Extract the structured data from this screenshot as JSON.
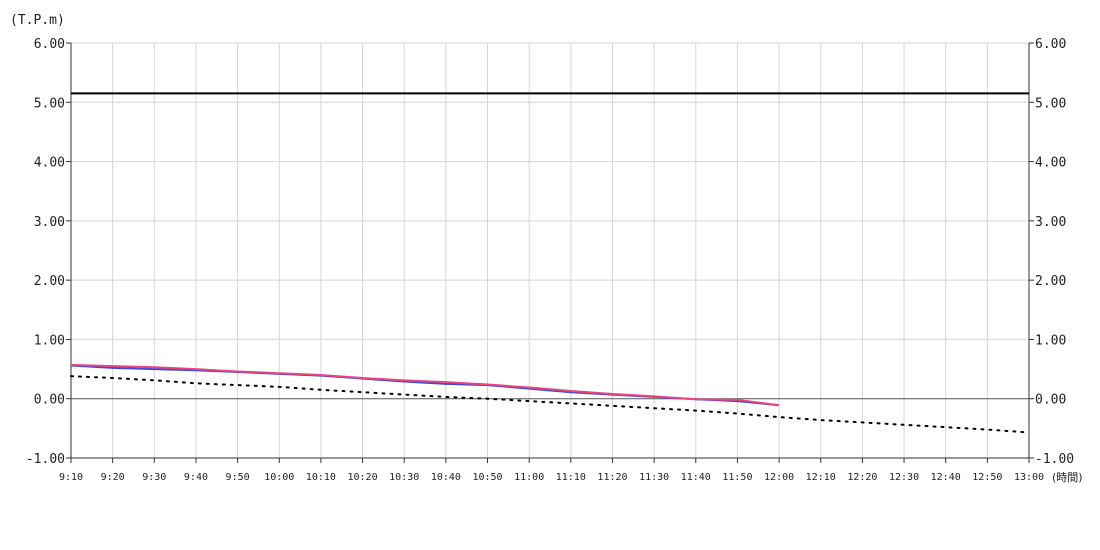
{
  "chart_data": {
    "type": "line",
    "y_unit_label": "(T.P.m)",
    "x_unit_label": "(時間)",
    "ylim": [
      -1.0,
      6.0
    ],
    "y_ticks": [
      "6.00",
      "5.00",
      "4.00",
      "3.00",
      "2.00",
      "1.00",
      "0.00",
      "-1.00"
    ],
    "y_tick_values": [
      6,
      5,
      4,
      3,
      2,
      1,
      0,
      -1
    ],
    "x_ticks": [
      "9:10",
      "9:20",
      "9:30",
      "9:40",
      "9:50",
      "10:00",
      "10:10",
      "10:20",
      "10:30",
      "10:40",
      "10:50",
      "11:00",
      "11:10",
      "11:20",
      "11:30",
      "11:40",
      "11:50",
      "12:00",
      "12:10",
      "12:20",
      "12:30",
      "12:40",
      "12:50",
      "13:00"
    ],
    "grid": true,
    "reference_line": {
      "value": 5.15,
      "color": "#000000"
    },
    "series": [
      {
        "style": "dotted",
        "color": "#000000",
        "x": [
          "9:10",
          "9:20",
          "9:30",
          "9:40",
          "9:50",
          "10:00",
          "10:10",
          "10:20",
          "10:30",
          "10:40",
          "10:50",
          "11:00",
          "11:10",
          "11:20",
          "11:30",
          "11:40",
          "11:50",
          "12:00",
          "12:10",
          "12:20",
          "12:30",
          "12:40",
          "12:50",
          "13:00"
        ],
        "values": [
          0.38,
          0.35,
          0.31,
          0.26,
          0.23,
          0.2,
          0.15,
          0.11,
          0.07,
          0.03,
          0.0,
          -0.04,
          -0.08,
          -0.12,
          -0.16,
          -0.2,
          -0.25,
          -0.31,
          -0.36,
          -0.4,
          -0.44,
          -0.48,
          -0.52,
          -0.57
        ]
      },
      {
        "style": "solid",
        "color": "#3b4bd8",
        "x": [
          "9:10",
          "9:20",
          "9:30",
          "9:40",
          "9:50",
          "10:00",
          "10:10",
          "10:20",
          "10:30",
          "10:40",
          "10:50",
          "11:00",
          "11:10",
          "11:20",
          "11:30",
          "11:40",
          "11:50",
          "12:00"
        ],
        "values": [
          0.56,
          0.52,
          0.5,
          0.48,
          0.45,
          0.42,
          0.39,
          0.34,
          0.29,
          0.25,
          0.23,
          0.17,
          0.11,
          0.07,
          0.03,
          -0.01,
          -0.04,
          -0.11
        ]
      },
      {
        "style": "solid",
        "color": "#e8457c",
        "x": [
          "9:10",
          "9:20",
          "9:30",
          "9:40",
          "9:50",
          "10:00",
          "10:10",
          "10:20",
          "10:30",
          "10:40",
          "10:50",
          "11:00",
          "11:10",
          "11:20",
          "11:30",
          "11:40",
          "11:50",
          "12:00"
        ],
        "values": [
          0.57,
          0.55,
          0.53,
          0.5,
          0.46,
          0.43,
          0.4,
          0.35,
          0.31,
          0.28,
          0.24,
          0.19,
          0.13,
          0.08,
          0.04,
          -0.01,
          -0.02,
          -0.11
        ]
      }
    ]
  }
}
